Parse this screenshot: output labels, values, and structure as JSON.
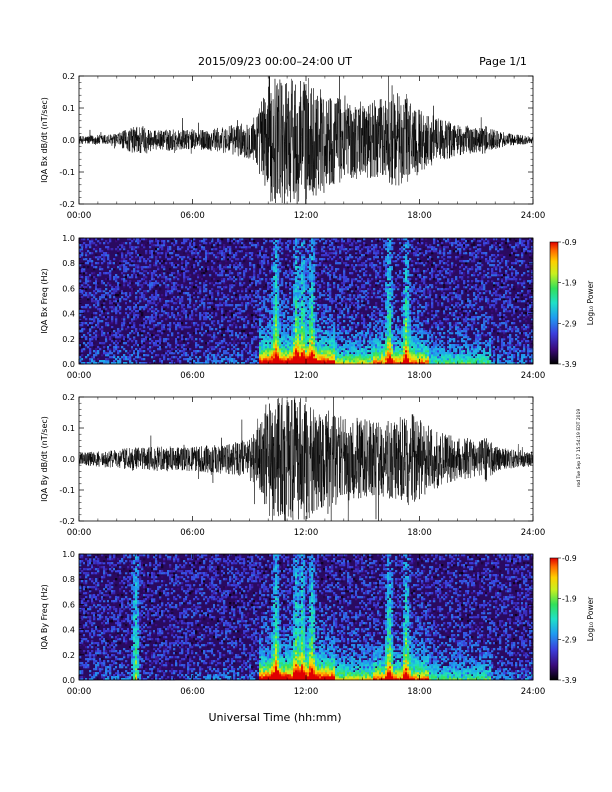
{
  "header": {
    "title": "2015/09/23  00:00–24:00 UT",
    "page": "Page 1/1"
  },
  "side_note": "rod Tue Sep 17 15:54:19 EDT 2019",
  "xlabel": "Universal Time (hh:mm)",
  "colorbar": {
    "label": "Log₁₀ Power",
    "ticks": [
      "-0.9",
      "-1.9",
      "-2.9",
      "-3.9"
    ],
    "range": [
      -3.9,
      -0.9
    ],
    "colormap": [
      "#000000",
      "#3a0a7a",
      "#3b3fdd",
      "#1f9cf0",
      "#1fe0c8",
      "#32e05a",
      "#c8f020",
      "#ffd000",
      "#ff6a00",
      "#e00000"
    ]
  },
  "chart_data": [
    {
      "type": "line",
      "title": "",
      "ylabel": "IQA Bx dB/dt (nT/sec)",
      "xlabel": "",
      "xlim": [
        "00:00",
        "24:00"
      ],
      "ylim": [
        -0.2,
        0.2
      ],
      "x_ticks": [
        "00:00",
        "06:00",
        "12:00",
        "18:00",
        "24:00"
      ],
      "y_ticks": [
        "0.2",
        "0.1",
        "0.0",
        "-0.1",
        "-0.2"
      ],
      "line_color": "#000000",
      "series": [
        {
          "x_hours": [
            0,
            2,
            3,
            3.3,
            4,
            5,
            6,
            7,
            8,
            9,
            9.5,
            10,
            10.5,
            11,
            12,
            13,
            14,
            15,
            16,
            16.5,
            17,
            17.5,
            18,
            19,
            20,
            21,
            21.5,
            22,
            23,
            24
          ],
          "amplitude": [
            0.012,
            0.02,
            0.045,
            0.05,
            0.03,
            0.035,
            0.03,
            0.035,
            0.045,
            0.06,
            0.1,
            0.2,
            0.2,
            0.2,
            0.2,
            0.15,
            0.13,
            0.12,
            0.13,
            0.14,
            0.15,
            0.14,
            0.1,
            0.07,
            0.05,
            0.04,
            0.045,
            0.03,
            0.018,
            0.012
          ]
        }
      ]
    },
    {
      "type": "heatmap",
      "title": "",
      "ylabel": "IQA Bx Freq (Hz)",
      "xlabel": "",
      "xlim": [
        "00:00",
        "24:00"
      ],
      "ylim": [
        0.0,
        1.0
      ],
      "x_ticks": [
        "00:00",
        "06:00",
        "12:00",
        "18:00",
        "24:00"
      ],
      "y_ticks": [
        "1.0",
        "0.8",
        "0.6",
        "0.4",
        "0.2",
        "0.0"
      ],
      "zlim": [
        -3.9,
        -0.9
      ],
      "bursts_hours": [
        10.4,
        11.5,
        11.8,
        12.3,
        16.4,
        17.3
      ]
    },
    {
      "type": "line",
      "title": "",
      "ylabel": "IQA By dB/dt (nT/sec)",
      "xlabel": "",
      "xlim": [
        "00:00",
        "24:00"
      ],
      "ylim": [
        -0.2,
        0.2
      ],
      "x_ticks": [
        "00:00",
        "06:00",
        "12:00",
        "18:00",
        "24:00"
      ],
      "y_ticks": [
        "0.2",
        "0.1",
        "0.0",
        "-0.1",
        "-0.2"
      ],
      "line_color": "#000000",
      "series": [
        {
          "x_hours": [
            0,
            2,
            3,
            4,
            5,
            6,
            7,
            8,
            9,
            9.5,
            10,
            10.5,
            11,
            12,
            13,
            14,
            15,
            16,
            17,
            17.5,
            18,
            19,
            20,
            21,
            21.5,
            22,
            23,
            24
          ],
          "amplitude": [
            0.02,
            0.03,
            0.04,
            0.04,
            0.04,
            0.04,
            0.045,
            0.05,
            0.07,
            0.1,
            0.2,
            0.2,
            0.2,
            0.2,
            0.16,
            0.14,
            0.13,
            0.12,
            0.14,
            0.15,
            0.13,
            0.09,
            0.07,
            0.06,
            0.08,
            0.04,
            0.03,
            0.025
          ]
        }
      ]
    },
    {
      "type": "heatmap",
      "title": "",
      "ylabel": "IQA By Freq (Hz)",
      "xlabel": "Universal Time (hh:mm)",
      "xlim": [
        "00:00",
        "24:00"
      ],
      "ylim": [
        0.0,
        1.0
      ],
      "x_ticks": [
        "00:00",
        "06:00",
        "12:00",
        "18:00",
        "24:00"
      ],
      "y_ticks": [
        "1.0",
        "0.8",
        "0.6",
        "0.4",
        "0.2",
        "0.0"
      ],
      "zlim": [
        -3.9,
        -0.9
      ],
      "bursts_hours": [
        3.0,
        10.4,
        11.5,
        11.8,
        12.3,
        16.4,
        17.3
      ]
    }
  ]
}
